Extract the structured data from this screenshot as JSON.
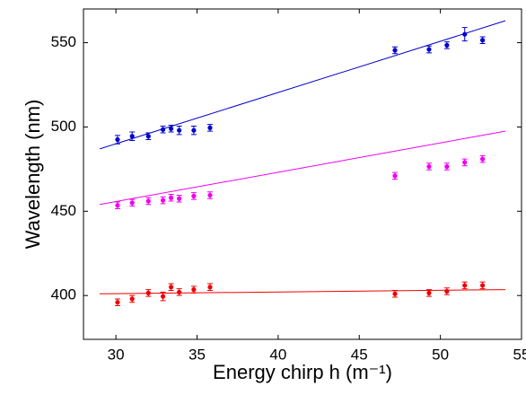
{
  "chart_data": {
    "type": "scatter",
    "xlabel": "Energy chirp h (m⁻¹)",
    "ylabel": "Wavelength (nm)",
    "xlim": [
      28,
      55
    ],
    "ylim": [
      374,
      570
    ],
    "xticks": [
      30,
      35,
      40,
      45,
      50,
      55
    ],
    "yticks": [
      400,
      450,
      500,
      550
    ],
    "x": [
      30.1,
      31.0,
      32.0,
      32.9,
      33.4,
      33.9,
      34.8,
      35.8,
      47.2,
      49.3,
      50.4,
      51.5,
      52.6
    ],
    "series": [
      {
        "color": "#0000cc",
        "values": [
          492.5,
          494.5,
          494.5,
          498.5,
          499,
          498,
          498,
          499.5,
          545.5,
          546,
          548.5,
          555,
          551.5
        ],
        "errors": [
          2.5,
          2.5,
          2,
          2,
          2,
          2.5,
          2.5,
          2,
          2,
          2,
          2,
          4,
          2
        ]
      },
      {
        "color": "#ee00ee",
        "values": [
          453.5,
          455,
          456,
          456.5,
          458,
          457.5,
          459,
          459.5,
          471,
          476.5,
          476.5,
          479,
          481
        ],
        "errors": [
          2,
          2,
          2,
          2,
          2,
          2,
          2,
          2,
          2,
          2,
          2,
          2,
          2
        ]
      },
      {
        "color": "#ee0000",
        "values": [
          396,
          398,
          401.5,
          399.5,
          405,
          402,
          403.5,
          405,
          401,
          401.5,
          402.5,
          406,
          406
        ],
        "errors": [
          2,
          2,
          2,
          2.5,
          2,
          2,
          2,
          2,
          2,
          2,
          2,
          2,
          2
        ]
      }
    ],
    "fits": [
      {
        "color": "#0000cc",
        "x": [
          29,
          54
        ],
        "values": [
          487,
          563
        ]
      },
      {
        "color": "#ee00ee",
        "x": [
          29,
          54
        ],
        "values": [
          454,
          497.5
        ]
      },
      {
        "color": "#ee0000",
        "x": [
          29,
          54
        ],
        "values": [
          401,
          403.5
        ]
      }
    ]
  }
}
